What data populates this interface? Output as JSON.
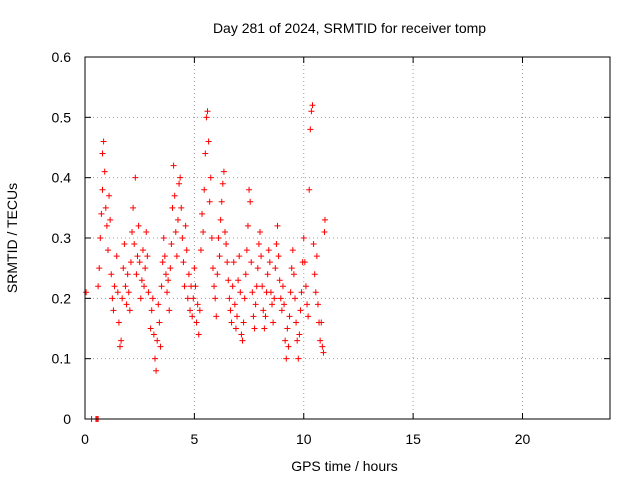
{
  "chart_data": {
    "type": "scatter",
    "title": "Day 281 of 2024, SRMTID for receiver tomp",
    "xlabel": "GPS time / hours",
    "ylabel": "SRMTID / TECUs",
    "xlim": [
      0,
      24
    ],
    "ylim": [
      0,
      0.6
    ],
    "x_ticks": [
      0,
      5,
      10,
      15,
      20
    ],
    "x_tick_labels": [
      "0",
      "5",
      "10",
      "15",
      "20"
    ],
    "y_ticks": [
      0,
      0.1,
      0.2,
      0.3,
      0.4,
      0.5,
      0.6
    ],
    "y_tick_labels": [
      "0",
      "0.1",
      "0.2",
      "0.3",
      "0.4",
      "0.5",
      "0.6"
    ],
    "grid": true,
    "series": [
      {
        "name": "SRMTID",
        "color": "#ff0000",
        "marker": "plus",
        "points": [
          [
            0.05,
            0.21
          ],
          [
            0.3,
            0.0
          ],
          [
            0.5,
            0.0
          ],
          [
            0.55,
            0.0
          ],
          [
            0.6,
            0.0
          ],
          [
            0.6,
            0.22
          ],
          [
            0.65,
            0.25
          ],
          [
            0.7,
            0.3
          ],
          [
            0.75,
            0.34
          ],
          [
            0.8,
            0.38
          ],
          [
            0.8,
            0.44
          ],
          [
            0.85,
            0.46
          ],
          [
            0.9,
            0.41
          ],
          [
            0.95,
            0.35
          ],
          [
            1.0,
            0.32
          ],
          [
            1.05,
            0.28
          ],
          [
            1.1,
            0.37
          ],
          [
            1.15,
            0.33
          ],
          [
            1.2,
            0.24
          ],
          [
            1.25,
            0.2
          ],
          [
            1.3,
            0.18
          ],
          [
            1.35,
            0.22
          ],
          [
            1.45,
            0.27
          ],
          [
            1.5,
            0.21
          ],
          [
            1.55,
            0.16
          ],
          [
            1.6,
            0.12
          ],
          [
            1.65,
            0.13
          ],
          [
            1.7,
            0.2
          ],
          [
            1.75,
            0.25
          ],
          [
            1.8,
            0.29
          ],
          [
            1.85,
            0.22
          ],
          [
            1.9,
            0.19
          ],
          [
            1.95,
            0.24
          ],
          [
            2.0,
            0.21
          ],
          [
            2.05,
            0.18
          ],
          [
            2.1,
            0.26
          ],
          [
            2.15,
            0.31
          ],
          [
            2.2,
            0.35
          ],
          [
            2.25,
            0.29
          ],
          [
            2.3,
            0.4
          ],
          [
            2.35,
            0.24
          ],
          [
            2.4,
            0.27
          ],
          [
            2.45,
            0.32
          ],
          [
            2.5,
            0.26
          ],
          [
            2.55,
            0.2
          ],
          [
            2.6,
            0.23
          ],
          [
            2.65,
            0.28
          ],
          [
            2.7,
            0.22
          ],
          [
            2.75,
            0.25
          ],
          [
            2.8,
            0.31
          ],
          [
            2.85,
            0.27
          ],
          [
            2.9,
            0.21
          ],
          [
            3.0,
            0.15
          ],
          [
            3.05,
            0.18
          ],
          [
            3.1,
            0.2
          ],
          [
            3.15,
            0.14
          ],
          [
            3.2,
            0.1
          ],
          [
            3.25,
            0.08
          ],
          [
            3.3,
            0.13
          ],
          [
            3.35,
            0.19
          ],
          [
            3.4,
            0.16
          ],
          [
            3.45,
            0.12
          ],
          [
            3.5,
            0.22
          ],
          [
            3.55,
            0.26
          ],
          [
            3.6,
            0.3
          ],
          [
            3.65,
            0.27
          ],
          [
            3.7,
            0.24
          ],
          [
            3.75,
            0.21
          ],
          [
            3.8,
            0.23
          ],
          [
            3.85,
            0.18
          ],
          [
            3.9,
            0.25
          ],
          [
            3.95,
            0.29
          ],
          [
            4.0,
            0.35
          ],
          [
            4.05,
            0.42
          ],
          [
            4.1,
            0.37
          ],
          [
            4.15,
            0.31
          ],
          [
            4.2,
            0.27
          ],
          [
            4.25,
            0.33
          ],
          [
            4.3,
            0.39
          ],
          [
            4.35,
            0.4
          ],
          [
            4.4,
            0.35
          ],
          [
            4.45,
            0.3
          ],
          [
            4.5,
            0.26
          ],
          [
            4.55,
            0.22
          ],
          [
            4.6,
            0.32
          ],
          [
            4.65,
            0.28
          ],
          [
            4.7,
            0.2
          ],
          [
            4.75,
            0.24
          ],
          [
            4.8,
            0.18
          ],
          [
            4.85,
            0.22
          ],
          [
            4.9,
            0.17
          ],
          [
            4.95,
            0.2
          ],
          [
            5.0,
            0.25
          ],
          [
            5.05,
            0.22
          ],
          [
            5.1,
            0.16
          ],
          [
            5.15,
            0.19
          ],
          [
            5.2,
            0.14
          ],
          [
            5.25,
            0.18
          ],
          [
            5.3,
            0.28
          ],
          [
            5.35,
            0.34
          ],
          [
            5.4,
            0.31
          ],
          [
            5.45,
            0.38
          ],
          [
            5.5,
            0.44
          ],
          [
            5.55,
            0.5
          ],
          [
            5.6,
            0.51
          ],
          [
            5.65,
            0.46
          ],
          [
            5.7,
            0.36
          ],
          [
            5.75,
            0.4
          ],
          [
            5.8,
            0.3
          ],
          [
            5.85,
            0.25
          ],
          [
            5.9,
            0.22
          ],
          [
            5.95,
            0.2
          ],
          [
            6.0,
            0.17
          ],
          [
            6.05,
            0.24
          ],
          [
            6.1,
            0.3
          ],
          [
            6.15,
            0.27
          ],
          [
            6.2,
            0.33
          ],
          [
            6.25,
            0.36
          ],
          [
            6.3,
            0.39
          ],
          [
            6.35,
            0.41
          ],
          [
            6.4,
            0.31
          ],
          [
            6.45,
            0.29
          ],
          [
            6.5,
            0.26
          ],
          [
            6.55,
            0.23
          ],
          [
            6.6,
            0.2
          ],
          [
            6.65,
            0.18
          ],
          [
            6.7,
            0.16
          ],
          [
            6.75,
            0.22
          ],
          [
            6.8,
            0.26
          ],
          [
            6.85,
            0.19
          ],
          [
            6.9,
            0.15
          ],
          [
            6.95,
            0.17
          ],
          [
            7.0,
            0.23
          ],
          [
            7.05,
            0.27
          ],
          [
            7.1,
            0.21
          ],
          [
            7.15,
            0.14
          ],
          [
            7.2,
            0.13
          ],
          [
            7.25,
            0.16
          ],
          [
            7.3,
            0.2
          ],
          [
            7.35,
            0.24
          ],
          [
            7.4,
            0.28
          ],
          [
            7.45,
            0.32
          ],
          [
            7.5,
            0.38
          ],
          [
            7.55,
            0.36
          ],
          [
            7.6,
            0.26
          ],
          [
            7.65,
            0.21
          ],
          [
            7.7,
            0.17
          ],
          [
            7.75,
            0.15
          ],
          [
            7.8,
            0.19
          ],
          [
            7.85,
            0.22
          ],
          [
            7.9,
            0.25
          ],
          [
            7.95,
            0.29
          ],
          [
            8.0,
            0.31
          ],
          [
            8.05,
            0.27
          ],
          [
            8.1,
            0.22
          ],
          [
            8.15,
            0.18
          ],
          [
            8.2,
            0.15
          ],
          [
            8.25,
            0.17
          ],
          [
            8.3,
            0.21
          ],
          [
            8.35,
            0.24
          ],
          [
            8.4,
            0.28
          ],
          [
            8.45,
            0.26
          ],
          [
            8.5,
            0.21
          ],
          [
            8.55,
            0.19
          ],
          [
            8.6,
            0.16
          ],
          [
            8.65,
            0.2
          ],
          [
            8.7,
            0.25
          ],
          [
            8.75,
            0.29
          ],
          [
            8.8,
            0.32
          ],
          [
            8.85,
            0.27
          ],
          [
            8.9,
            0.23
          ],
          [
            8.95,
            0.2
          ],
          [
            9.0,
            0.18
          ],
          [
            9.05,
            0.22
          ],
          [
            9.1,
            0.19
          ],
          [
            9.15,
            0.13
          ],
          [
            9.2,
            0.1
          ],
          [
            9.25,
            0.15
          ],
          [
            9.3,
            0.12
          ],
          [
            9.35,
            0.17
          ],
          [
            9.4,
            0.21
          ],
          [
            9.45,
            0.25
          ],
          [
            9.5,
            0.28
          ],
          [
            9.55,
            0.24
          ],
          [
            9.6,
            0.2
          ],
          [
            9.65,
            0.16
          ],
          [
            9.7,
            0.13
          ],
          [
            9.75,
            0.1
          ],
          [
            9.8,
            0.14
          ],
          [
            9.85,
            0.18
          ],
          [
            9.9,
            0.21
          ],
          [
            9.95,
            0.26
          ],
          [
            10.0,
            0.3
          ],
          [
            10.05,
            0.26
          ],
          [
            10.1,
            0.22
          ],
          [
            10.15,
            0.19
          ],
          [
            10.2,
            0.17
          ],
          [
            10.25,
            0.38
          ],
          [
            10.3,
            0.48
          ],
          [
            10.35,
            0.51
          ],
          [
            10.4,
            0.52
          ],
          [
            10.45,
            0.29
          ],
          [
            10.5,
            0.24
          ],
          [
            10.55,
            0.21
          ],
          [
            10.6,
            0.27
          ],
          [
            10.65,
            0.19
          ],
          [
            10.7,
            0.16
          ],
          [
            10.75,
            0.13
          ],
          [
            10.8,
            0.16
          ],
          [
            10.85,
            0.12
          ],
          [
            10.9,
            0.11
          ],
          [
            10.95,
            0.31
          ],
          [
            10.97,
            0.33
          ]
        ]
      }
    ]
  }
}
